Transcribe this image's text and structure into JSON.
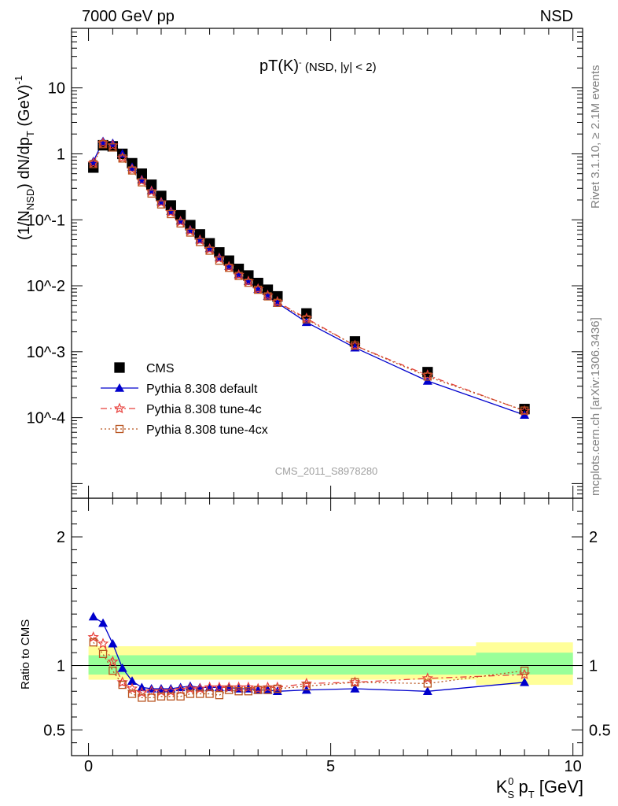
{
  "header": {
    "left": "7000 GeV pp",
    "right": "NSD"
  },
  "side": {
    "rivet": "Rivet 3.1.10, ≥ 2.1M events",
    "mcplots": "mcplots.cern.ch [arXiv:1306.3436]"
  },
  "chart_data": [
    {
      "type": "scatter",
      "title_main": "pT(K)",
      "title_sup": "-",
      "title_rest": " (NSD, |y| < 2)",
      "watermark": "CMS_2011_S8978280",
      "ylabel": "(1/N_NSD) dN/dp_T (GeV)^-1",
      "yscale": "log",
      "xlim": [
        -0.35,
        10.2
      ],
      "ylim": [
        6e-06,
        80
      ],
      "y_tick_labels": [
        "10^-4",
        "10^-3",
        "10^-2",
        "10^-1",
        "1",
        "10"
      ],
      "legend_position": "bottom-left",
      "colors": {
        "CMS": "#000000",
        "default": "#0000cc",
        "tune4c": "#e8403c",
        "tune4cx": "#b8531e"
      },
      "series": [
        {
          "name": "CMS",
          "x": [
            0.1,
            0.3,
            0.5,
            0.7,
            0.9,
            1.1,
            1.3,
            1.5,
            1.7,
            1.9,
            2.1,
            2.3,
            2.5,
            2.7,
            2.9,
            3.1,
            3.3,
            3.5,
            3.7,
            3.9,
            4.5,
            5.5,
            7.0,
            9.0
          ],
          "values": [
            0.62,
            1.35,
            1.3,
            1.0,
            0.72,
            0.5,
            0.34,
            0.23,
            0.165,
            0.117,
            0.083,
            0.06,
            0.044,
            0.032,
            0.024,
            0.018,
            0.0143,
            0.011,
            0.0087,
            0.0069,
            0.0038,
            0.00143,
            0.00049,
            0.000135
          ]
        },
        {
          "name": "Pythia 8.308 default",
          "x": [
            0.1,
            0.3,
            0.5,
            0.7,
            0.9,
            1.1,
            1.3,
            1.5,
            1.7,
            1.9,
            2.1,
            2.3,
            2.5,
            2.7,
            2.9,
            3.1,
            3.3,
            3.5,
            3.7,
            3.9,
            4.5,
            5.5,
            7.0,
            9.0
          ],
          "values": [
            0.77,
            1.55,
            1.45,
            1.0,
            0.63,
            0.41,
            0.28,
            0.189,
            0.136,
            0.097,
            0.071,
            0.05,
            0.037,
            0.027,
            0.0198,
            0.0149,
            0.0118,
            0.0089,
            0.007,
            0.0055,
            0.0028,
            0.00115,
            0.00036,
            0.00011
          ]
        },
        {
          "name": "Pythia 8.308 tune-4c",
          "x": [
            0.1,
            0.3,
            0.5,
            0.7,
            0.9,
            1.1,
            1.3,
            1.5,
            1.7,
            1.9,
            2.1,
            2.3,
            2.5,
            2.7,
            2.9,
            3.1,
            3.3,
            3.5,
            3.7,
            3.9,
            4.5,
            5.5,
            7.0,
            9.0
          ],
          "values": [
            0.72,
            1.45,
            1.34,
            0.87,
            0.58,
            0.39,
            0.27,
            0.183,
            0.131,
            0.094,
            0.068,
            0.049,
            0.036,
            0.026,
            0.0194,
            0.0146,
            0.0116,
            0.0089,
            0.0071,
            0.0057,
            0.0032,
            0.00124,
            0.00044,
            0.000126
          ]
        },
        {
          "name": "Pythia 8.308 tune-4cx",
          "x": [
            0.1,
            0.3,
            0.5,
            0.7,
            0.9,
            1.1,
            1.3,
            1.5,
            1.7,
            1.9,
            2.1,
            2.3,
            2.5,
            2.7,
            2.9,
            3.1,
            3.3,
            3.5,
            3.7,
            3.9,
            4.5,
            5.5,
            7.0,
            9.0
          ],
          "values": [
            0.7,
            1.4,
            1.25,
            0.85,
            0.56,
            0.37,
            0.25,
            0.171,
            0.122,
            0.088,
            0.064,
            0.046,
            0.034,
            0.024,
            0.0187,
            0.0141,
            0.0111,
            0.0087,
            0.0069,
            0.0055,
            0.0031,
            0.00124,
            0.00042,
            0.000128
          ]
        }
      ]
    },
    {
      "type": "line",
      "ylabel": "Ratio to CMS",
      "xlabel": "K_S^0 p_T [GeV]",
      "xlim": [
        -0.35,
        10.2
      ],
      "ylim": [
        0.3,
        2.3
      ],
      "y_tick_labels": [
        "0.5",
        "1",
        "2"
      ],
      "x_tick_labels": [
        "0",
        "5",
        "10"
      ],
      "colors": {
        "band_outer": "#ffff99",
        "band_inner": "#99ff99",
        "default": "#0000cc",
        "tune4c": "#e8403c",
        "tune4cx": "#b8531e"
      },
      "bands": [
        {
          "x": [
            0,
            8
          ],
          "outer": [
            0.89,
            1.15
          ],
          "inner": [
            0.93,
            1.08
          ]
        },
        {
          "x": [
            8,
            10
          ],
          "outer": [
            0.85,
            1.18
          ],
          "inner": [
            0.93,
            1.1
          ]
        }
      ],
      "series": [
        {
          "name": "Pythia 8.308 default",
          "x": [
            0.1,
            0.3,
            0.5,
            0.7,
            0.9,
            1.1,
            1.3,
            1.5,
            1.7,
            1.9,
            2.1,
            2.3,
            2.5,
            2.7,
            2.9,
            3.1,
            3.3,
            3.5,
            3.7,
            3.9,
            4.5,
            5.5,
            7.0,
            9.0
          ],
          "values": [
            1.38,
            1.33,
            1.17,
            0.98,
            0.88,
            0.83,
            0.82,
            0.82,
            0.82,
            0.83,
            0.84,
            0.83,
            0.83,
            0.83,
            0.83,
            0.82,
            0.82,
            0.81,
            0.81,
            0.8,
            0.81,
            0.82,
            0.8,
            0.87
          ]
        },
        {
          "name": "Pythia 8.308 tune-4c",
          "x": [
            0.1,
            0.3,
            0.5,
            0.7,
            0.9,
            1.1,
            1.3,
            1.5,
            1.7,
            1.9,
            2.1,
            2.3,
            2.5,
            2.7,
            2.9,
            3.1,
            3.3,
            3.5,
            3.7,
            3.9,
            4.5,
            5.5,
            7.0,
            9.0
          ],
          "values": [
            1.22,
            1.17,
            1.03,
            0.87,
            0.82,
            0.79,
            0.8,
            0.8,
            0.8,
            0.81,
            0.82,
            0.82,
            0.83,
            0.83,
            0.83,
            0.83,
            0.83,
            0.82,
            0.83,
            0.83,
            0.86,
            0.87,
            0.9,
            0.93
          ]
        },
        {
          "name": "Pythia 8.308 tune-4cx",
          "x": [
            0.1,
            0.3,
            0.5,
            0.7,
            0.9,
            1.1,
            1.3,
            1.5,
            1.7,
            1.9,
            2.1,
            2.3,
            2.5,
            2.7,
            2.9,
            3.1,
            3.3,
            3.5,
            3.7,
            3.9,
            4.5,
            5.5,
            7.0,
            9.0
          ],
          "values": [
            1.18,
            1.09,
            0.96,
            0.85,
            0.78,
            0.75,
            0.75,
            0.76,
            0.76,
            0.76,
            0.78,
            0.78,
            0.78,
            0.77,
            0.81,
            0.8,
            0.8,
            0.81,
            0.81,
            0.82,
            0.84,
            0.87,
            0.86,
            0.96
          ]
        }
      ]
    }
  ]
}
